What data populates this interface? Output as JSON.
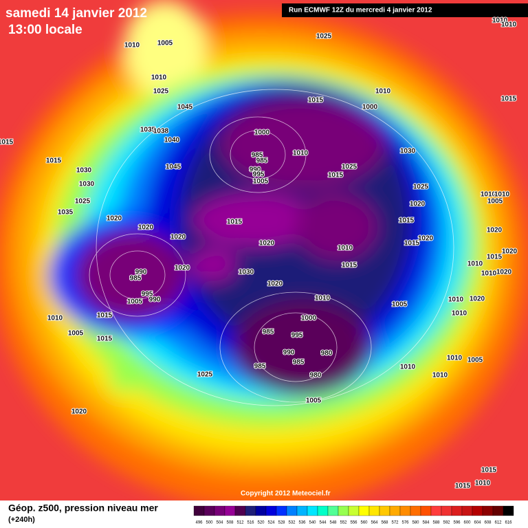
{
  "header": {
    "date": "samedi 14 janvier 2012",
    "time": "13:00 locale",
    "run": "Run ECMWF 12Z du mercredi 4 janvier 2012"
  },
  "copyright": "Copyright 2012 Meteociel.fr",
  "legend": {
    "title": "Géop. z500, pression niveau mer",
    "subtitle": "(+240h)",
    "scale": [
      496,
      500,
      504,
      508,
      512,
      516,
      520,
      524,
      528,
      532,
      536,
      540,
      544,
      548,
      552,
      556,
      560,
      564,
      568,
      572,
      576,
      580,
      584,
      588,
      592,
      596,
      600,
      604,
      608,
      612,
      616
    ],
    "colors": [
      "#40003c",
      "#5a005a",
      "#780078",
      "#960096",
      "#500050",
      "#1e1e78",
      "#0000a0",
      "#0000dc",
      "#0030ff",
      "#0080ff",
      "#00b4ff",
      "#00e6ff",
      "#00ffc8",
      "#50ff96",
      "#96ff50",
      "#c8ff32",
      "#ffff00",
      "#ffe600",
      "#ffc800",
      "#ffaa00",
      "#ff8c00",
      "#ff6e00",
      "#ff5000",
      "#ff3c3c",
      "#f03232",
      "#dc1e1e",
      "#c81414",
      "#b40000",
      "#8c0000",
      "#640000",
      "#000000"
    ]
  },
  "isobar_labels": [
    1010,
    1005,
    1025,
    1010,
    1010,
    1010,
    1025,
    1045,
    1015,
    1035,
    1038,
    1040,
    1015,
    1045,
    1030,
    1030,
    1025,
    1035,
    1020,
    1020,
    1020,
    1000,
    985,
    985,
    990,
    995,
    1005,
    1010,
    1015,
    1010,
    1000,
    1025,
    1015,
    1030,
    1025,
    1020,
    1015,
    1015,
    1020,
    1020,
    1015,
    1020,
    1010,
    1010,
    1020,
    1020,
    1010,
    1010,
    1005,
    1010,
    1010,
    1015,
    1020,
    1010,
    1015,
    1030,
    1020,
    1020,
    990,
    985,
    995,
    1005,
    990,
    1010,
    1015,
    1005,
    1015,
    1010,
    1005,
    1000,
    985,
    995,
    990,
    980,
    985,
    985,
    980,
    1010,
    1025,
    1005,
    1020,
    1015,
    1015,
    1010,
    1015,
    1010,
    1010,
    1005
  ]
}
